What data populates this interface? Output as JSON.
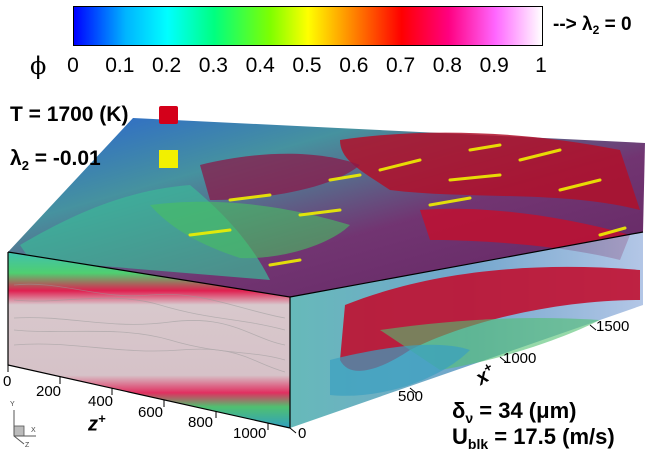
{
  "colorbar": {
    "note_prefix": "--> λ",
    "note_sub": "2",
    "note_suffix": " = 0",
    "symbol": "ϕ",
    "ticks": [
      "0",
      "0.1",
      "0.2",
      "0.3",
      "0.4",
      "0.5",
      "0.6",
      "0.7",
      "0.8",
      "0.9",
      "1"
    ],
    "colors": [
      "#0000ff",
      "#00ffff",
      "#00ff80",
      "#ffff00",
      "#ff0000",
      "#ff66ff",
      "#ffffff"
    ]
  },
  "legend": {
    "temperature": {
      "label": "T  = 1700 (K)",
      "color": "#d4001a"
    },
    "lambda2": {
      "label_prefix": "λ",
      "label_sub": "2",
      "label_suffix": " = -0.01",
      "color": "#f2f000"
    }
  },
  "axes": {
    "x": {
      "label": "x",
      "sup": "+",
      "ticks": [
        "500",
        "1000",
        "1500"
      ]
    },
    "z": {
      "label": "z",
      "sup": "+",
      "ticks": [
        "0",
        "200",
        "400",
        "600",
        "800",
        "1000"
      ]
    },
    "y_zero": "0"
  },
  "triad": {
    "y": "Y",
    "x": "X",
    "z": "Z"
  },
  "annotations": {
    "delta_symbol": "δ",
    "delta_sub": "ν",
    "delta_value": "  = 34 (μm)",
    "u_symbol": "U",
    "u_sub": "blk",
    "u_value": " = 17.5 (m/s)"
  }
}
